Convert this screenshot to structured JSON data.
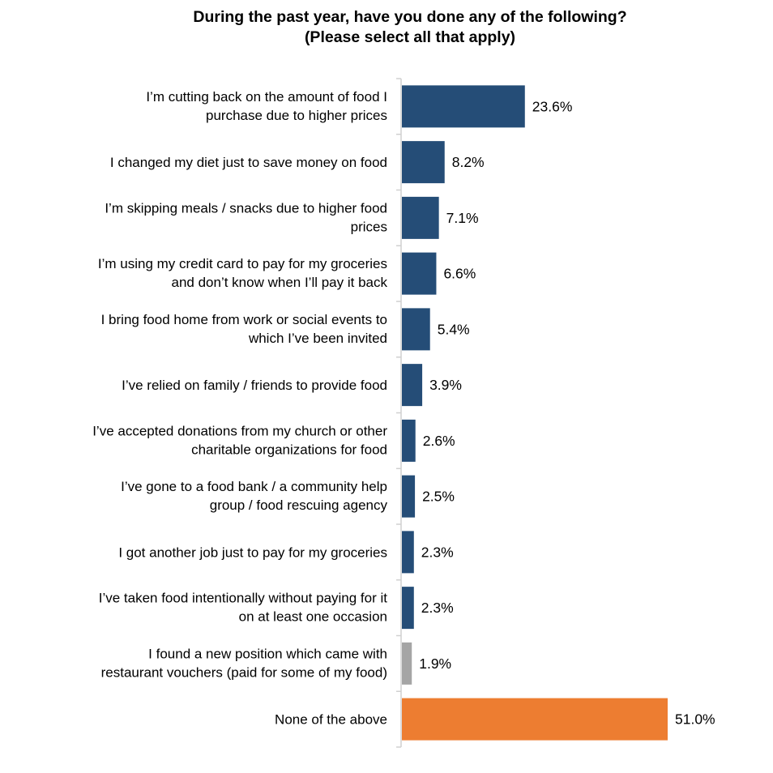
{
  "chart_data": {
    "type": "bar",
    "orientation": "horizontal",
    "title": "During the past year, have you done any of the following?",
    "subtitle": "(Please select all that apply)",
    "xlabel": "",
    "ylabel": "",
    "xlim": [
      0,
      51
    ],
    "grid": false,
    "legend": "none",
    "categories": [
      [
        "I’m cutting back on the amount of food I",
        "purchase due to higher prices"
      ],
      [
        "I changed my diet just to save money on food"
      ],
      [
        "I’m skipping meals / snacks due to higher food",
        "prices"
      ],
      [
        "I’m using my credit card to pay for my groceries",
        "and don’t know when I’ll pay it back"
      ],
      [
        "I bring food home from work or social events to",
        "which I’ve been invited"
      ],
      [
        "I’ve relied on family / friends to provide food"
      ],
      [
        "I’ve accepted donations from my church or other",
        "charitable organizations for food"
      ],
      [
        "I’ve gone to a food bank / a community help",
        "group / food rescuing agency"
      ],
      [
        "I got another job just to pay for my groceries"
      ],
      [
        "I’ve taken food intentionally without paying for it",
        "on at least one occasion"
      ],
      [
        "I found a new position which came with",
        "restaurant vouchers (paid for some of my food)"
      ],
      [
        "None of the above"
      ]
    ],
    "values": [
      23.6,
      8.2,
      7.1,
      6.6,
      5.4,
      3.9,
      2.6,
      2.5,
      2.3,
      2.3,
      1.9,
      51.0
    ],
    "data_labels": [
      "23.6%",
      "8.2%",
      "7.1%",
      "6.6%",
      "5.4%",
      "3.9%",
      "2.6%",
      "2.5%",
      "2.3%",
      "2.3%",
      "1.9%",
      "51.0%"
    ],
    "colors": [
      "#254D77",
      "#254D77",
      "#254D77",
      "#254D77",
      "#254D77",
      "#254D77",
      "#254D77",
      "#254D77",
      "#254D77",
      "#254D77",
      "#A5A5A5",
      "#ED7D31"
    ]
  }
}
